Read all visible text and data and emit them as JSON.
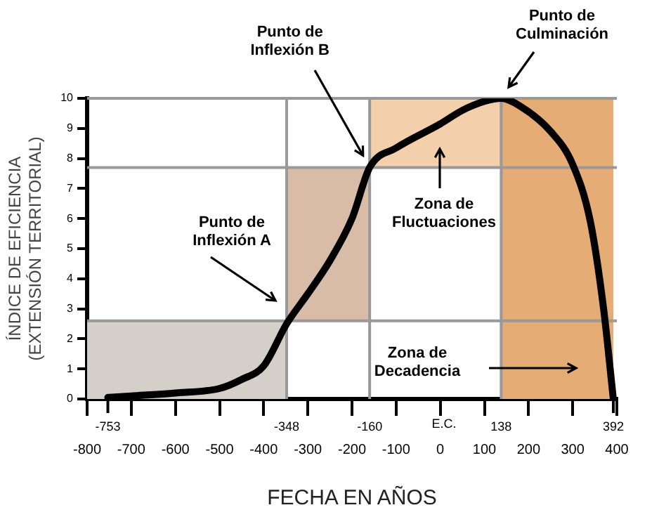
{
  "chart_data": {
    "type": "line",
    "xlabel": "FECHA EN AÑOS",
    "ylabel": "ÍNDICE DE EFICIENCIA\n(EXTENSIÓN TERRITORIAL)",
    "x": [
      -753,
      -700,
      -600,
      -500,
      -450,
      -400,
      -348,
      -300,
      -250,
      -200,
      -160,
      -100,
      0,
      50,
      100,
      138,
      180,
      250,
      300,
      340,
      370,
      392
    ],
    "series": [
      {
        "color": "#000000",
        "values": [
          0.05,
          0.1,
          0.2,
          0.35,
          0.65,
          1.1,
          2.5,
          3.5,
          4.6,
          6.0,
          7.7,
          8.35,
          9.15,
          9.6,
          9.9,
          10,
          9.75,
          8.9,
          7.8,
          5.9,
          3,
          0
        ]
      }
    ],
    "xlim": [
      -800,
      400
    ],
    "xticks": [
      -800,
      -700,
      -600,
      -500,
      -400,
      -300,
      -200,
      -100,
      0,
      100,
      200,
      300,
      400
    ],
    "ylim": [
      0,
      10
    ],
    "yticks": [
      0,
      1,
      2,
      3,
      4,
      5,
      6,
      7,
      8,
      9,
      10
    ],
    "grid": false,
    "legend": false,
    "marker": "none",
    "line_style": "solid",
    "bands": [
      {
        "axis": "x",
        "from": -800,
        "to": -348,
        "color": "#d5cfca"
      },
      {
        "axis": "x",
        "from": -348,
        "to": -160,
        "color": "#d8bca8"
      },
      {
        "axis": "x",
        "from": -160,
        "to": 138,
        "color": "#f3cfab"
      },
      {
        "axis": "x",
        "from": 138,
        "to": 392,
        "color": "#e6ac76"
      }
    ],
    "ref_lines": [
      {
        "axis": "x",
        "value": -348,
        "label": "-348",
        "color": "#999999"
      },
      {
        "axis": "x",
        "value": -160,
        "label": "-160",
        "color": "#999999"
      },
      {
        "axis": "x",
        "value": 138,
        "label": "138",
        "color": "#999999"
      },
      {
        "axis": "y",
        "value": 2.6,
        "color": "#999999"
      },
      {
        "axis": "y",
        "value": 7.7,
        "color": "#999999"
      },
      {
        "axis": "y",
        "value": 10,
        "color": "#999999"
      }
    ],
    "annotations": [
      {
        "text": "-753",
        "x": -753,
        "y": 0
      },
      {
        "text": "392",
        "x": 392,
        "y": 0
      },
      "E.C.",
      "Punto de\nInflexión A",
      {
        "text": "Punto de\nInflexión B",
        "x": -175,
        "y": 8.1
      },
      "Punto de\nCulminación",
      "Zona de\nFluctuaciones",
      "Zona de\nDecadencia"
    ]
  }
}
